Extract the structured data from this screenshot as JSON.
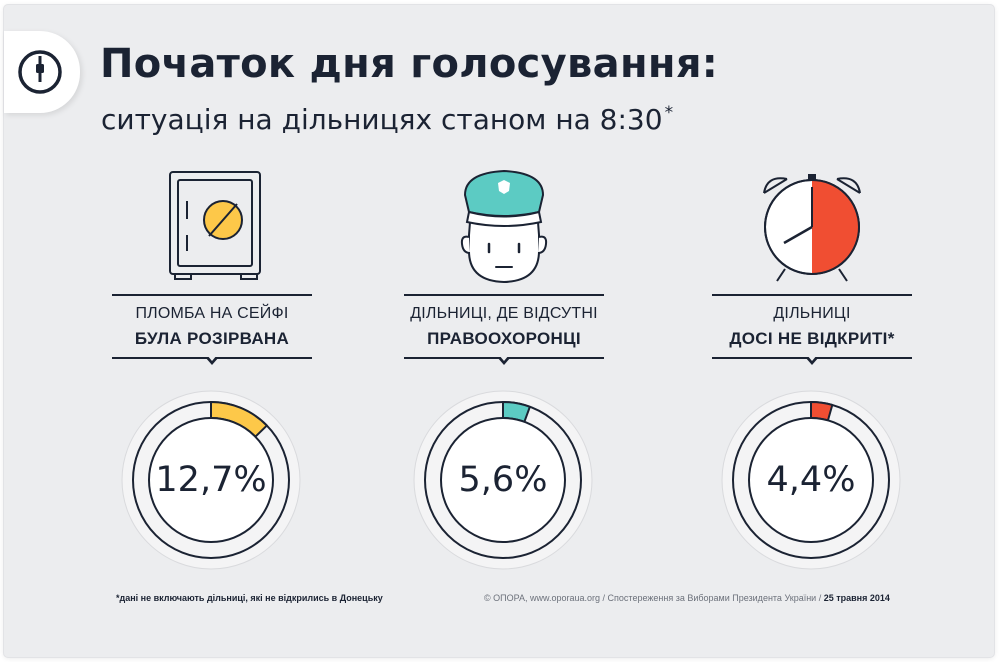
{
  "header": {
    "title": "Початок дня голосування:",
    "subtitle": "ситуація на дільницях станом на 8:30",
    "subtitle_mark": "*"
  },
  "logo": {
    "icon": "power-plug-icon"
  },
  "colors": {
    "background": "#ecedef",
    "text": "#1b2333",
    "ring": "#f4f4f5",
    "ring_border": "#d9dadd",
    "yellow": "#fdc849",
    "teal": "#5ccbc3",
    "red": "#f04e32"
  },
  "chart_data": [
    {
      "type": "pie",
      "label_line1": "ПЛОМБА НА СЕЙФІ",
      "label_line2": "БУЛА РОЗІРВАНА",
      "value": 12.7,
      "value_label": "12,7%",
      "unit": "%",
      "color": "#fdc849",
      "icon": "safe-icon"
    },
    {
      "type": "pie",
      "label_line1": "ДІЛЬНИЦІ, ДЕ ВІДСУТНІ",
      "label_line2": "ПРАВООХОРОНЦІ",
      "value": 5.6,
      "value_label": "5,6%",
      "unit": "%",
      "color": "#5ccbc3",
      "icon": "police-officer-icon"
    },
    {
      "type": "pie",
      "label_line1": "ДІЛЬНИЦІ",
      "label_line2": "ДОСІ НЕ ВІДКРИТІ*",
      "value": 4.4,
      "value_label": "4,4%",
      "unit": "%",
      "color": "#f04e32",
      "icon": "alarm-clock-icon"
    }
  ],
  "footer": {
    "footnote": "*дані не включають дільниці, які не відкрились в Донецьку",
    "credits": "© ОПОРА, www.oporaua.org / Спостереження за Виборами Президента України / ",
    "date": "25 травня 2014"
  }
}
